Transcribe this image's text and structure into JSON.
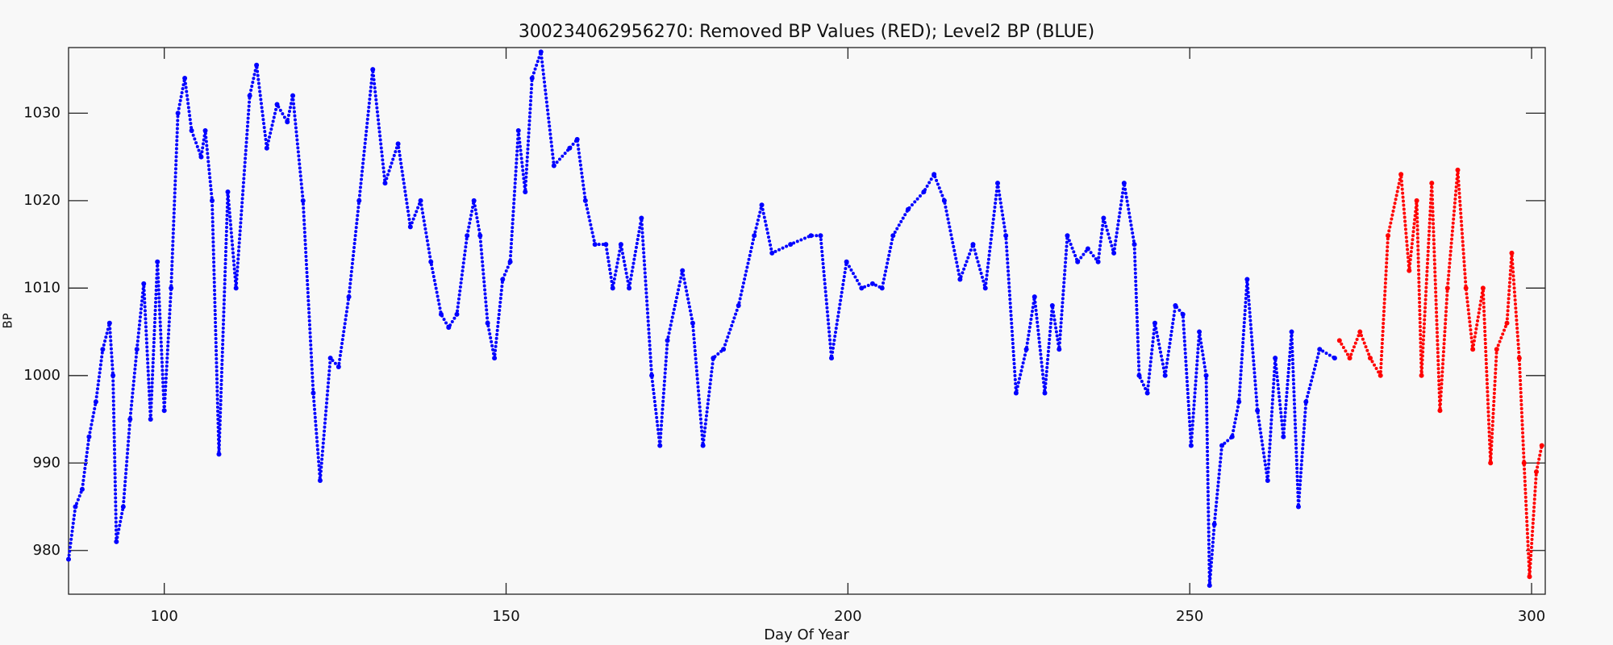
{
  "chart_data": {
    "type": "scatter",
    "title": "300234062956270: Removed BP Values (RED); Level2 BP (BLUE)",
    "x_label": "Day Of Year",
    "y_label": "BP",
    "xlim": [
      86,
      302
    ],
    "ylim": [
      975,
      1037.5
    ],
    "xticks": [
      100,
      150,
      200,
      250,
      300
    ],
    "yticks": [
      980,
      990,
      1000,
      1010,
      1020,
      1030
    ],
    "series": [
      {
        "color": "#0000ff",
        "x": [
          86,
          87,
          88,
          89,
          90,
          91,
          92,
          92.5,
          93,
          94,
          95,
          96,
          97,
          98,
          99,
          100,
          101,
          102,
          103,
          104,
          105.4,
          106,
          107,
          108,
          109.3,
          110.5,
          112.5,
          113.5,
          115,
          116.5,
          118,
          118.8,
          120.3,
          121.8,
          122.8,
          124.3,
          125.5,
          127,
          128.5,
          130.5,
          132.3,
          134.2,
          136,
          137.5,
          139,
          140.5,
          141.6,
          142.8,
          144.3,
          145.3,
          146.2,
          147.3,
          148.3,
          149.5,
          150.6,
          151.8,
          152.8,
          153.8,
          155.1,
          157,
          159.3,
          160.4,
          161.6,
          163,
          164.6,
          165.6,
          166.8,
          168,
          169.8,
          171.3,
          172.5,
          173.6,
          175.8,
          177.3,
          178.8,
          180.3,
          181.8,
          184,
          186.3,
          187.4,
          188.9,
          191.6,
          194.6,
          196,
          197.6,
          199.8,
          202,
          203.6,
          205,
          206.6,
          208.8,
          211.1,
          212.6,
          214.1,
          216.4,
          218.3,
          220.1,
          221.9,
          223.1,
          224.6,
          226.1,
          227.3,
          228.8,
          229.9,
          230.9,
          232.1,
          233.6,
          235.1,
          236.6,
          237.4,
          238.9,
          240.4,
          241.9,
          242.6,
          243.8,
          244.9,
          246.4,
          247.9,
          249,
          250.2,
          251.4,
          252.4,
          252.9,
          253.6,
          254.7,
          256.2,
          257.2,
          258.4,
          259.9,
          261.4,
          262.5,
          263.7,
          264.9,
          265.9,
          267,
          269,
          271.2
        ],
        "values": [
          979,
          985,
          987,
          993,
          997,
          1003,
          1006,
          1000,
          981,
          985,
          995,
          1003,
          1010.5,
          995,
          1013,
          996,
          1010,
          1030,
          1034,
          1028,
          1025,
          1028,
          1020,
          991,
          1021,
          1010,
          1032,
          1035.5,
          1026,
          1031,
          1029,
          1032,
          1020,
          998,
          988,
          1002,
          1001,
          1009,
          1020,
          1035,
          1022,
          1026.5,
          1017,
          1020,
          1013,
          1007,
          1005.5,
          1007,
          1016,
          1020,
          1016,
          1006,
          1002,
          1011,
          1013,
          1028,
          1021,
          1034,
          1037,
          1024,
          1026,
          1027,
          1020,
          1015,
          1015,
          1010,
          1015,
          1010,
          1018,
          1000,
          992,
          1004,
          1012,
          1006,
          992,
          1002,
          1003,
          1008,
          1016,
          1019.5,
          1014,
          1015,
          1016,
          1016,
          1002,
          1013,
          1010,
          1010.5,
          1010,
          1016,
          1019,
          1021,
          1023,
          1020,
          1011,
          1015,
          1010,
          1022,
          1016,
          998,
          1003,
          1009,
          998,
          1008,
          1003,
          1016,
          1013,
          1014.5,
          1013,
          1018,
          1014,
          1022,
          1015,
          1000,
          998,
          1006,
          1000,
          1008,
          1007,
          992,
          1005,
          1000,
          976,
          983,
          992,
          993,
          997,
          1011,
          996,
          988,
          1002,
          993,
          1005,
          985,
          997,
          1003,
          1002
        ]
      },
      {
        "color": "#ff0000",
        "x": [
          271.9,
          273.4,
          274.9,
          276.4,
          277.9,
          279,
          280.9,
          282.1,
          283.2,
          283.9,
          285.4,
          286.6,
          287.7,
          289.2,
          290.4,
          291.4,
          292.9,
          294,
          294.9,
          296.4,
          297.1,
          298.2,
          298.9,
          299.7,
          300.7,
          301.5
        ],
        "values": [
          1004,
          1002,
          1005,
          1002,
          1000,
          1016,
          1023,
          1012,
          1020,
          1000,
          1022,
          996,
          1010,
          1023.5,
          1010,
          1003,
          1010,
          990,
          1003,
          1006,
          1014,
          1002,
          990,
          977,
          989,
          992
        ]
      }
    ]
  }
}
